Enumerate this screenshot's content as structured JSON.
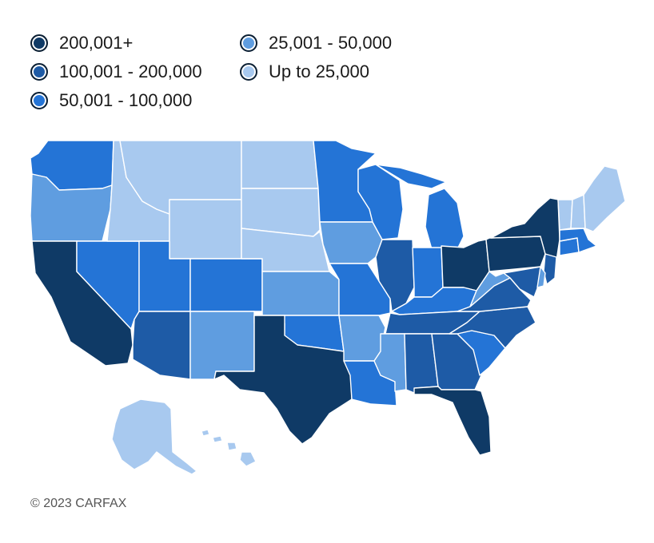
{
  "legend": {
    "items": [
      {
        "label": "200,001+",
        "color": "#0f3a66"
      },
      {
        "label": "100,001 - 200,000",
        "color": "#1e5ba6"
      },
      {
        "label": "50,001 - 100,000",
        "color": "#2474d6"
      },
      {
        "label": "25,001 - 50,000",
        "color": "#5f9de0"
      },
      {
        "label": "Up to 25,000",
        "color": "#a8c9ef"
      }
    ]
  },
  "map": {
    "tier_colors": {
      "t1": "#0f3a66",
      "t2": "#1e5ba6",
      "t3": "#2474d6",
      "t4": "#5f9de0",
      "t5": "#a8c9ef"
    },
    "states": {
      "WA": "t3",
      "OR": "t4",
      "CA": "t1",
      "NV": "t3",
      "ID": "t5",
      "MT": "t5",
      "WY": "t5",
      "UT": "t3",
      "AZ": "t2",
      "CO": "t3",
      "NM": "t4",
      "ND": "t5",
      "SD": "t5",
      "NE": "t5",
      "KS": "t4",
      "OK": "t3",
      "TX": "t1",
      "MN": "t3",
      "IA": "t4",
      "MO": "t3",
      "AR": "t4",
      "LA": "t3",
      "WI": "t3",
      "IL": "t2",
      "MI": "t3",
      "IN": "t3",
      "OH": "t1",
      "KY": "t3",
      "TN": "t2",
      "MS": "t4",
      "AL": "t2",
      "GA": "t2",
      "FL": "t1",
      "SC": "t3",
      "NC": "t2",
      "VA": "t2",
      "WV": "t4",
      "PA": "t1",
      "NY": "t1",
      "NJ": "t2",
      "MD": "t2",
      "DE": "t4",
      "CT": "t3",
      "MA": "t3",
      "VT": "t5",
      "NH": "t5",
      "ME": "t5",
      "AK": "t5",
      "HI": "t5"
    }
  },
  "footer": {
    "copyright": "© 2023 CARFAX"
  }
}
